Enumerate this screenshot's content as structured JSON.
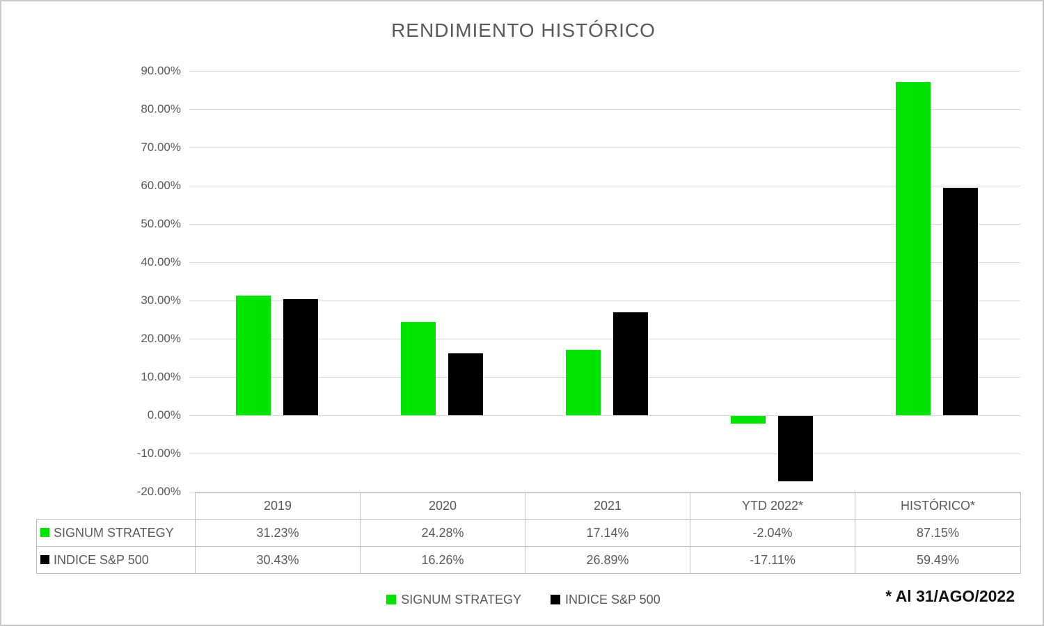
{
  "title": "RENDIMIENTO HISTÓRICO",
  "footnote": "* Al 31/AGO/2022",
  "colors": {
    "signum_green": "#00E400",
    "sp500_black": "#000000",
    "gridline": "#d9d9d9",
    "table_border": "#bfbfbf",
    "axis_text": "#595959"
  },
  "chart_data": {
    "type": "bar",
    "title": "RENDIMIENTO HISTÓRICO",
    "categories": [
      "2019",
      "2020",
      "2021",
      "YTD 2022*",
      "HISTÓRICO*"
    ],
    "series": [
      {
        "name": "SIGNUM STRATEGY",
        "color": "#00E400",
        "values": [
          31.23,
          24.28,
          17.14,
          -2.04,
          87.15
        ]
      },
      {
        "name": "INDICE S&P 500",
        "color": "#000000",
        "values": [
          30.43,
          16.26,
          26.89,
          -17.11,
          59.49
        ]
      }
    ],
    "xlabel": "",
    "ylabel": "",
    "ylim": [
      -20,
      90
    ],
    "y_axis": {
      "min": -20,
      "max": 90,
      "step": 10,
      "tick_values": [
        90,
        80,
        70,
        60,
        50,
        40,
        30,
        20,
        10,
        0,
        -10,
        -20
      ],
      "tick_labels": [
        "90.00%",
        "80.00%",
        "70.00%",
        "60.00%",
        "50.00%",
        "40.00%",
        "30.00%",
        "20.00%",
        "10.00%",
        "0.00%",
        "-10.00%",
        "-20.00%"
      ]
    },
    "grid": true,
    "legend_position": "bottom",
    "annotation": "* Al 31/AGO/2022"
  },
  "table": {
    "header": [
      "2019",
      "2020",
      "2021",
      "YTD 2022*",
      "HISTÓRICO*"
    ],
    "rows": [
      {
        "label": "SIGNUM STRATEGY",
        "values": [
          "31.23%",
          "24.28%",
          "17.14%",
          "-2.04%",
          "87.15%"
        ]
      },
      {
        "label": "INDICE S&P 500",
        "values": [
          "30.43%",
          "16.26%",
          "26.89%",
          "-17.11%",
          "59.49%"
        ]
      }
    ]
  },
  "legend": {
    "items": [
      {
        "label": "SIGNUM STRATEGY",
        "color": "#00E400"
      },
      {
        "label": "INDICE S&P 500",
        "color": "#000000"
      }
    ]
  }
}
